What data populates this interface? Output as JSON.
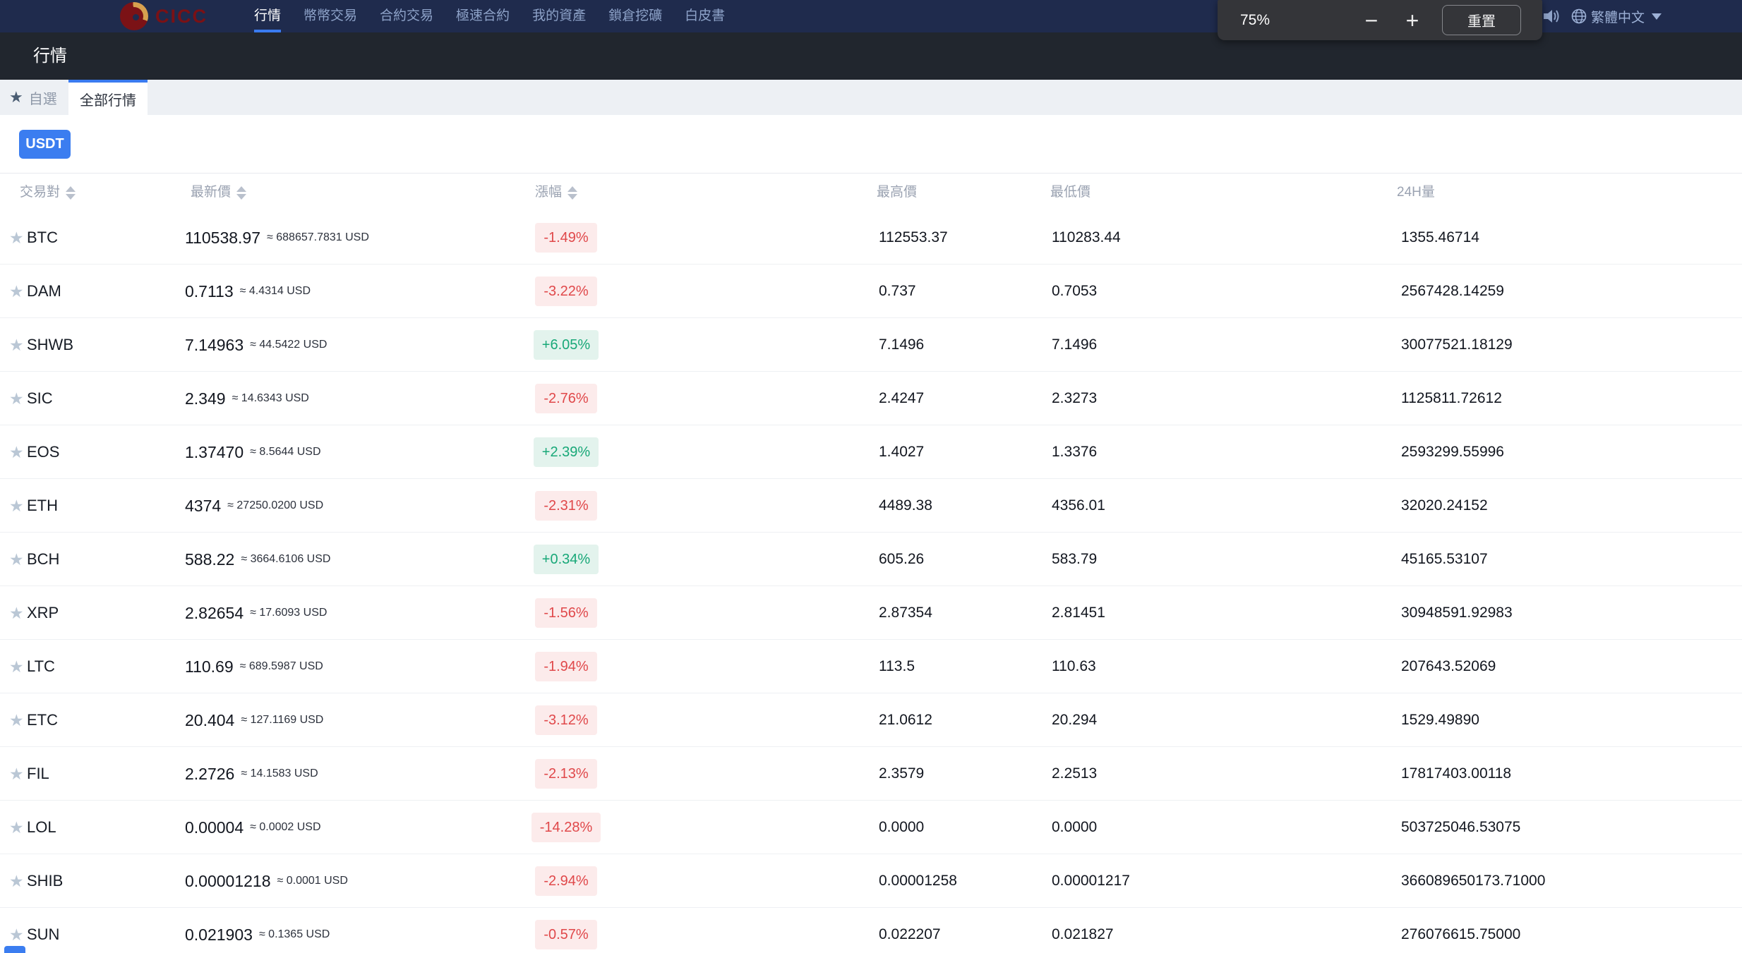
{
  "nav": {
    "brand": "CICC",
    "items": [
      {
        "label": "行情",
        "active": true
      },
      {
        "label": "幣幣交易",
        "active": false
      },
      {
        "label": "合約交易",
        "active": false
      },
      {
        "label": "極速合約",
        "active": false
      },
      {
        "label": "我的資產",
        "active": false
      },
      {
        "label": "鎖倉挖礦",
        "active": false
      },
      {
        "label": "白皮書",
        "active": false
      }
    ],
    "language": "繁體中文"
  },
  "zoom_overlay": {
    "level": "75%",
    "minus_label": "−",
    "plus_label": "+",
    "reset_label": "重置"
  },
  "page": {
    "title": "行情"
  },
  "tabs": {
    "favorites_label": "自選",
    "favorites_star": "★",
    "all_label": "全部行情",
    "filter_label": "USDT"
  },
  "table": {
    "headers": [
      {
        "label": "交易對",
        "sortable": true
      },
      {
        "label": "最新價",
        "sortable": true
      },
      {
        "label": "漲幅",
        "sortable": true
      },
      {
        "label": "最高價",
        "sortable": false
      },
      {
        "label": "最低價",
        "sortable": false
      },
      {
        "label": "24H量",
        "sortable": false
      }
    ],
    "star_glyph": "★",
    "rows": [
      {
        "pair": "BTC",
        "price": "110538.97",
        "usd": "≈ 688657.7831 USD",
        "change": "-1.49%",
        "dir": "down",
        "high": "112553.37",
        "low": "110283.44",
        "volume": "1355.46714"
      },
      {
        "pair": "DAM",
        "price": "0.7113",
        "usd": "≈ 4.4314 USD",
        "change": "-3.22%",
        "dir": "down",
        "high": "0.737",
        "low": "0.7053",
        "volume": "2567428.14259"
      },
      {
        "pair": "SHWB",
        "price": "7.14963",
        "usd": "≈ 44.5422 USD",
        "change": "+6.05%",
        "dir": "up",
        "high": "7.1496",
        "low": "7.1496",
        "volume": "30077521.18129"
      },
      {
        "pair": "SIC",
        "price": "2.349",
        "usd": "≈ 14.6343 USD",
        "change": "-2.76%",
        "dir": "down",
        "high": "2.4247",
        "low": "2.3273",
        "volume": "1125811.72612"
      },
      {
        "pair": "EOS",
        "price": "1.37470",
        "usd": "≈ 8.5644 USD",
        "change": "+2.39%",
        "dir": "up",
        "high": "1.4027",
        "low": "1.3376",
        "volume": "2593299.55996"
      },
      {
        "pair": "ETH",
        "price": "4374",
        "usd": "≈ 27250.0200 USD",
        "change": "-2.31%",
        "dir": "down",
        "high": "4489.38",
        "low": "4356.01",
        "volume": "32020.24152"
      },
      {
        "pair": "BCH",
        "price": "588.22",
        "usd": "≈ 3664.6106 USD",
        "change": "+0.34%",
        "dir": "up",
        "high": "605.26",
        "low": "583.79",
        "volume": "45165.53107"
      },
      {
        "pair": "XRP",
        "price": "2.82654",
        "usd": "≈ 17.6093 USD",
        "change": "-1.56%",
        "dir": "down",
        "high": "2.87354",
        "low": "2.81451",
        "volume": "30948591.92983"
      },
      {
        "pair": "LTC",
        "price": "110.69",
        "usd": "≈ 689.5987 USD",
        "change": "-1.94%",
        "dir": "down",
        "high": "113.5",
        "low": "110.63",
        "volume": "207643.52069"
      },
      {
        "pair": "ETC",
        "price": "20.404",
        "usd": "≈ 127.1169 USD",
        "change": "-3.12%",
        "dir": "down",
        "high": "21.0612",
        "low": "20.294",
        "volume": "1529.49890"
      },
      {
        "pair": "FIL",
        "price": "2.2726",
        "usd": "≈ 14.1583 USD",
        "change": "-2.13%",
        "dir": "down",
        "high": "2.3579",
        "low": "2.2513",
        "volume": "17817403.00118"
      },
      {
        "pair": "LOL",
        "price": "0.00004",
        "usd": "≈ 0.0002 USD",
        "change": "-14.28%",
        "dir": "down",
        "high": "0.0000",
        "low": "0.0000",
        "volume": "503725046.53075"
      },
      {
        "pair": "SHIB",
        "price": "0.00001218",
        "usd": "≈ 0.0001 USD",
        "change": "-2.94%",
        "dir": "down",
        "high": "0.00001258",
        "low": "0.00001217",
        "volume": "366089650173.71000"
      },
      {
        "pair": "SUN",
        "price": "0.021903",
        "usd": "≈ 0.1365 USD",
        "change": "-0.57%",
        "dir": "down",
        "high": "0.022207",
        "low": "0.021827",
        "volume": "276076615.75000"
      }
    ]
  },
  "colors": {
    "nav_bg": "#1f2b4d",
    "accent_blue": "#3a7bf0",
    "up_green": "#18a878",
    "up_bg": "#e3f3ed",
    "down_red": "#e0484a",
    "down_bg": "#fcebeb",
    "brand_maroon": "#7a1115",
    "brand_gold": "#d7a14f"
  }
}
